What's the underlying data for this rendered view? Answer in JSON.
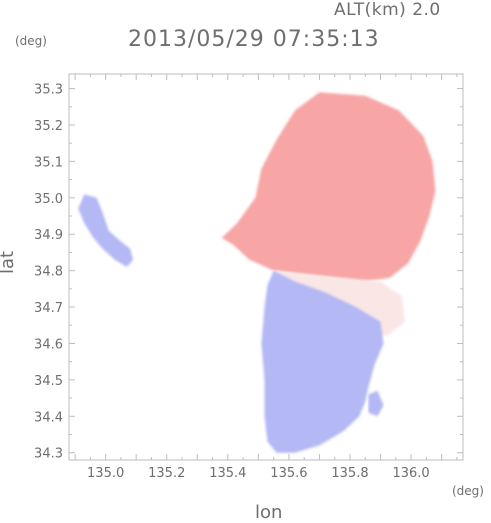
{
  "header": {
    "altitude": "ALT(km) 2.0",
    "timestamp": "2013/05/29 07:35:13"
  },
  "chart_data": {
    "type": "heatmap",
    "xlabel": "lon",
    "ylabel": "lat",
    "x_unit": "(deg)",
    "y_unit": "(deg)",
    "xlim": [
      134.88,
      136.17
    ],
    "ylim": [
      34.28,
      35.34
    ],
    "x_ticks": [
      "135.0",
      "135.2",
      "135.4",
      "135.6",
      "135.8",
      "136.0"
    ],
    "y_ticks": [
      "34.3",
      "34.4",
      "34.5",
      "34.6",
      "34.7",
      "34.8",
      "34.9",
      "35.0",
      "35.1",
      "35.2",
      "35.3"
    ],
    "grid": false,
    "colors": {
      "receding": "#f7a5a5",
      "approaching": "#b4b8f4",
      "near_zero": "#fbe6e6",
      "axis": "#bdbdbd"
    },
    "regions": [
      {
        "name": "receding-echo",
        "sign": "positive",
        "polygon": [
          [
            135.7,
            35.29
          ],
          [
            135.85,
            35.28
          ],
          [
            135.96,
            35.24
          ],
          [
            136.04,
            35.17
          ],
          [
            136.07,
            35.1
          ],
          [
            136.08,
            35.02
          ],
          [
            136.06,
            34.95
          ],
          [
            136.03,
            34.88
          ],
          [
            135.99,
            34.82
          ],
          [
            135.93,
            34.78
          ],
          [
            135.84,
            34.77
          ],
          [
            135.74,
            34.78
          ],
          [
            135.65,
            34.79
          ],
          [
            135.55,
            34.8
          ],
          [
            135.47,
            34.83
          ],
          [
            135.42,
            34.87
          ],
          [
            135.38,
            34.89
          ],
          [
            135.43,
            34.93
          ],
          [
            135.49,
            35.0
          ],
          [
            135.51,
            35.08
          ],
          [
            135.56,
            35.16
          ],
          [
            135.62,
            35.24
          ]
        ]
      },
      {
        "name": "transition-echo",
        "sign": "near-zero",
        "polygon": [
          [
            135.55,
            34.8
          ],
          [
            135.65,
            34.79
          ],
          [
            135.78,
            34.78
          ],
          [
            135.9,
            34.77
          ],
          [
            135.97,
            34.73
          ],
          [
            135.98,
            34.66
          ],
          [
            135.92,
            34.62
          ],
          [
            135.8,
            34.66
          ],
          [
            135.68,
            34.72
          ],
          [
            135.58,
            34.76
          ]
        ]
      },
      {
        "name": "approaching-echo",
        "sign": "negative",
        "polygon": [
          [
            135.55,
            34.8
          ],
          [
            135.62,
            34.77
          ],
          [
            135.72,
            34.74
          ],
          [
            135.82,
            34.7
          ],
          [
            135.9,
            34.66
          ],
          [
            135.91,
            34.6
          ],
          [
            135.88,
            34.54
          ],
          [
            135.86,
            34.48
          ],
          [
            135.85,
            34.44
          ],
          [
            135.83,
            34.4
          ],
          [
            135.78,
            34.36
          ],
          [
            135.7,
            34.32
          ],
          [
            135.62,
            34.3
          ],
          [
            135.56,
            34.3
          ],
          [
            135.53,
            34.33
          ],
          [
            135.52,
            34.4
          ],
          [
            135.52,
            34.5
          ],
          [
            135.51,
            34.6
          ],
          [
            135.52,
            34.7
          ],
          [
            135.53,
            34.76
          ]
        ]
      },
      {
        "name": "isolated-approaching-echo",
        "sign": "negative",
        "polygon": [
          [
            134.93,
            35.01
          ],
          [
            134.97,
            35.0
          ],
          [
            134.99,
            34.96
          ],
          [
            135.01,
            34.91
          ],
          [
            135.05,
            34.88
          ],
          [
            135.08,
            34.86
          ],
          [
            135.09,
            34.83
          ],
          [
            135.07,
            34.81
          ],
          [
            135.03,
            34.83
          ],
          [
            134.99,
            34.86
          ],
          [
            134.96,
            34.89
          ],
          [
            134.93,
            34.93
          ],
          [
            134.91,
            34.97
          ]
        ]
      },
      {
        "name": "eastern-approaching-cell",
        "sign": "negative",
        "polygon": [
          [
            135.86,
            34.46
          ],
          [
            135.89,
            34.47
          ],
          [
            135.91,
            34.43
          ],
          [
            135.89,
            34.4
          ],
          [
            135.86,
            34.41
          ]
        ]
      }
    ]
  }
}
